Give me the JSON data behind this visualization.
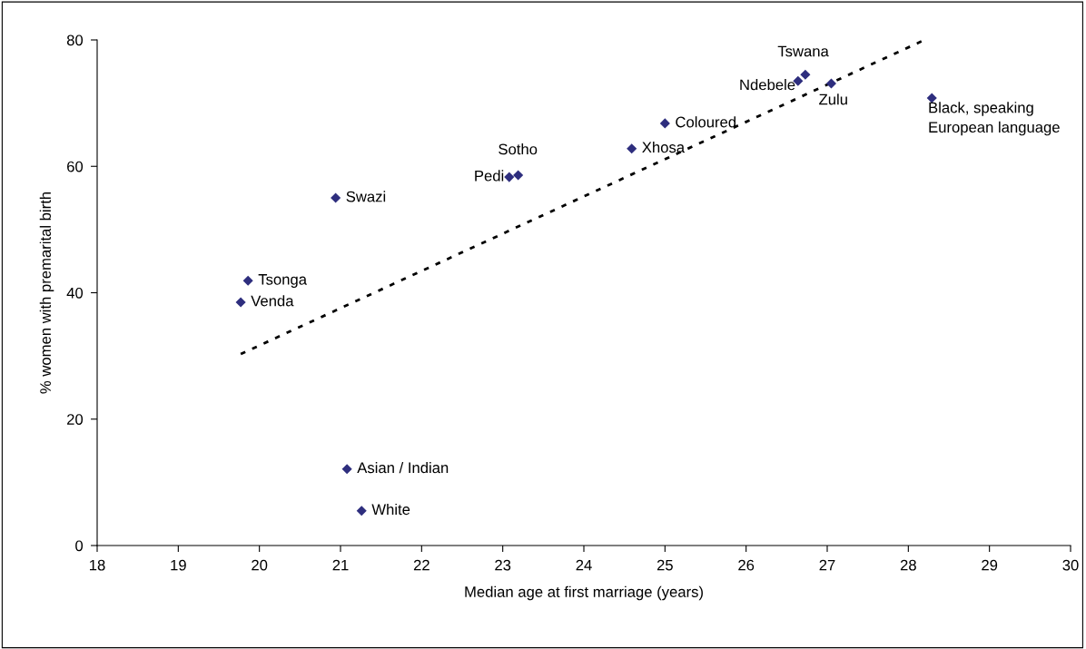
{
  "chart_data": {
    "type": "scatter",
    "xlabel": "Median age at first marriage (years)",
    "ylabel": "% women with premarital birth",
    "xlim": [
      18,
      30
    ],
    "xticks": [
      18,
      19,
      20,
      21,
      22,
      23,
      24,
      25,
      26,
      27,
      28,
      29,
      30
    ],
    "ylim": [
      0,
      80
    ],
    "yticks": [
      0,
      20,
      40,
      60,
      80
    ],
    "grid": false,
    "legend": false,
    "marker": "diamond",
    "series": [
      {
        "color": "#2e2e7e",
        "x": [
          19.77,
          19.86,
          20.94,
          21.08,
          21.26,
          23.08,
          23.19,
          24.59,
          25.0,
          26.64,
          26.73,
          27.05,
          28.29
        ],
        "values": [
          38.5,
          41.9,
          55.0,
          12.1,
          5.5,
          58.3,
          58.6,
          62.8,
          66.8,
          73.5,
          74.5,
          73.1,
          70.8
        ]
      },
      {
        "type": "line",
        "color": "#000000",
        "line_style": "dotted",
        "marker": "none",
        "x": [
          19.77,
          28.2
        ],
        "values": [
          30.3,
          80
        ]
      }
    ],
    "annotations": [
      {
        "text": "Venda",
        "x": 19.77,
        "y": 38.5
      },
      {
        "text": "Tsonga",
        "x": 19.86,
        "y": 41.9
      },
      {
        "text": "Swazi",
        "x": 20.94,
        "y": 55.0
      },
      {
        "text": "Asian / Indian",
        "x": 21.08,
        "y": 12.1
      },
      {
        "text": "White",
        "x": 21.26,
        "y": 5.5
      },
      {
        "text": "Pedi",
        "x": 23.08,
        "y": 58.3
      },
      {
        "text": "Sotho",
        "x": 23.19,
        "y": 58.6
      },
      {
        "text": "Xhosa",
        "x": 24.59,
        "y": 62.8
      },
      {
        "text": "Coloured",
        "x": 25.0,
        "y": 66.8
      },
      {
        "text": "Ndebele",
        "x": 26.64,
        "y": 73.5
      },
      {
        "text": "Tswana",
        "x": 26.73,
        "y": 74.5
      },
      {
        "text": "Zulu",
        "x": 27.05,
        "y": 73.1
      },
      {
        "text": "Black, speaking\nEuropean language",
        "x": 28.29,
        "y": 70.8
      }
    ]
  }
}
